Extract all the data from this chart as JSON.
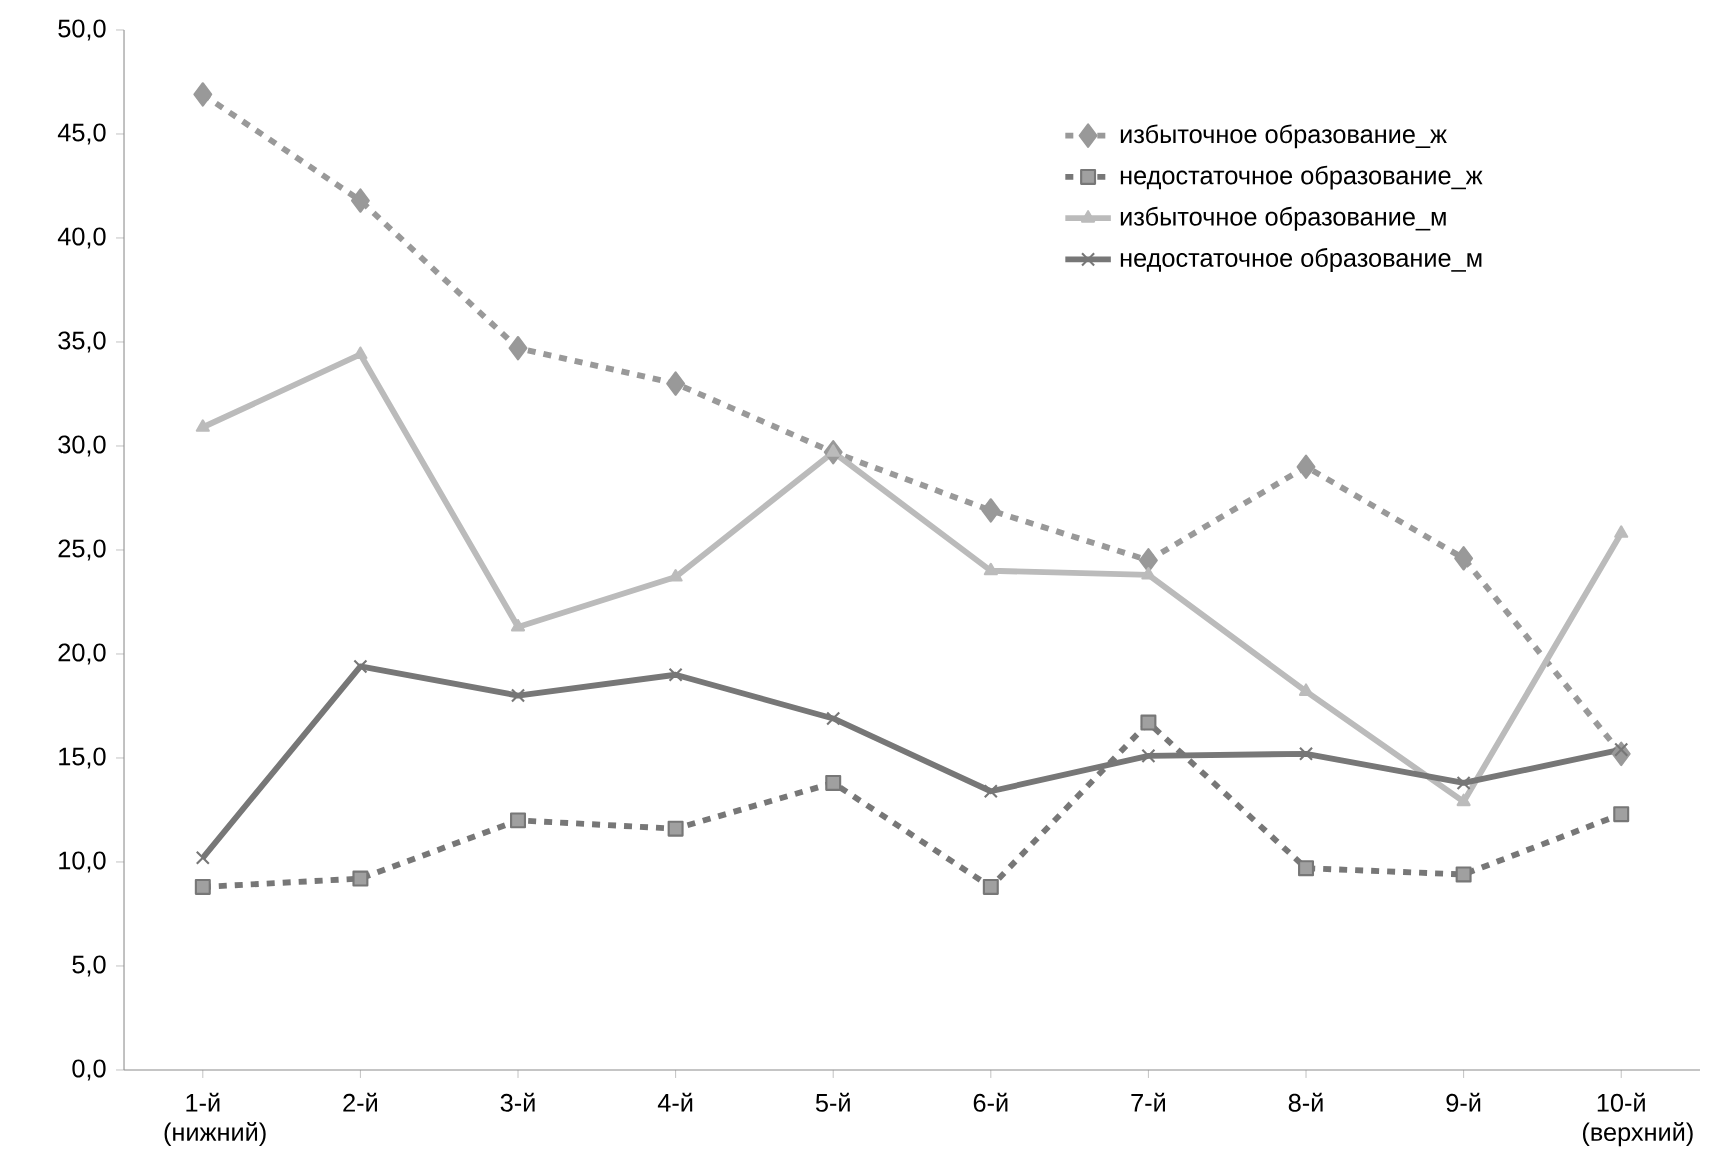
{
  "chart_data": {
    "type": "line",
    "categories": [
      "1-й (нижний)",
      "2-й",
      "3-й",
      "4-й",
      "5-й",
      "6-й",
      "7-й",
      "8-й",
      "9-й",
      "10-й (верхний)"
    ],
    "series": [
      {
        "name": "избыточное образование_ж",
        "color": "#999999",
        "marker": "diamond",
        "line_style": "dashed",
        "values": [
          46.9,
          41.8,
          34.7,
          33.0,
          29.7,
          26.9,
          24.5,
          29.0,
          24.6,
          15.2
        ]
      },
      {
        "name": "недостаточное образование_ж",
        "color": "#777777",
        "marker": "square",
        "line_style": "dashed",
        "values": [
          8.8,
          9.2,
          12.0,
          11.6,
          13.8,
          8.8,
          16.7,
          9.7,
          9.4,
          12.3
        ]
      },
      {
        "name": "избыточное образование_м",
        "color": "#bbbbbb",
        "marker": "triangle",
        "line_style": "solid",
        "values": [
          30.9,
          34.4,
          21.3,
          23.7,
          29.7,
          24.0,
          23.8,
          18.2,
          12.9,
          25.8
        ]
      },
      {
        "name": "недостаточное образование_м",
        "color": "#777777",
        "marker": "cross",
        "line_style": "solid",
        "values": [
          10.2,
          19.4,
          18.0,
          19.0,
          16.9,
          13.4,
          15.1,
          15.2,
          13.8,
          15.4
        ]
      }
    ],
    "ylim": [
      0,
      50
    ],
    "yticks": [
      {
        "value": 0,
        "label": "0,0"
      },
      {
        "value": 5,
        "label": "5,0"
      },
      {
        "value": 10,
        "label": "10,0"
      },
      {
        "value": 15,
        "label": "15,0"
      },
      {
        "value": 20,
        "label": "20,0"
      },
      {
        "value": 25,
        "label": "25,0"
      },
      {
        "value": 30,
        "label": "30,0"
      },
      {
        "value": 35,
        "label": "35,0"
      },
      {
        "value": 40,
        "label": "40,0"
      },
      {
        "value": 45,
        "label": "45,0"
      },
      {
        "value": 50,
        "label": "50,0"
      }
    ],
    "grid": false,
    "legend": "top right"
  }
}
